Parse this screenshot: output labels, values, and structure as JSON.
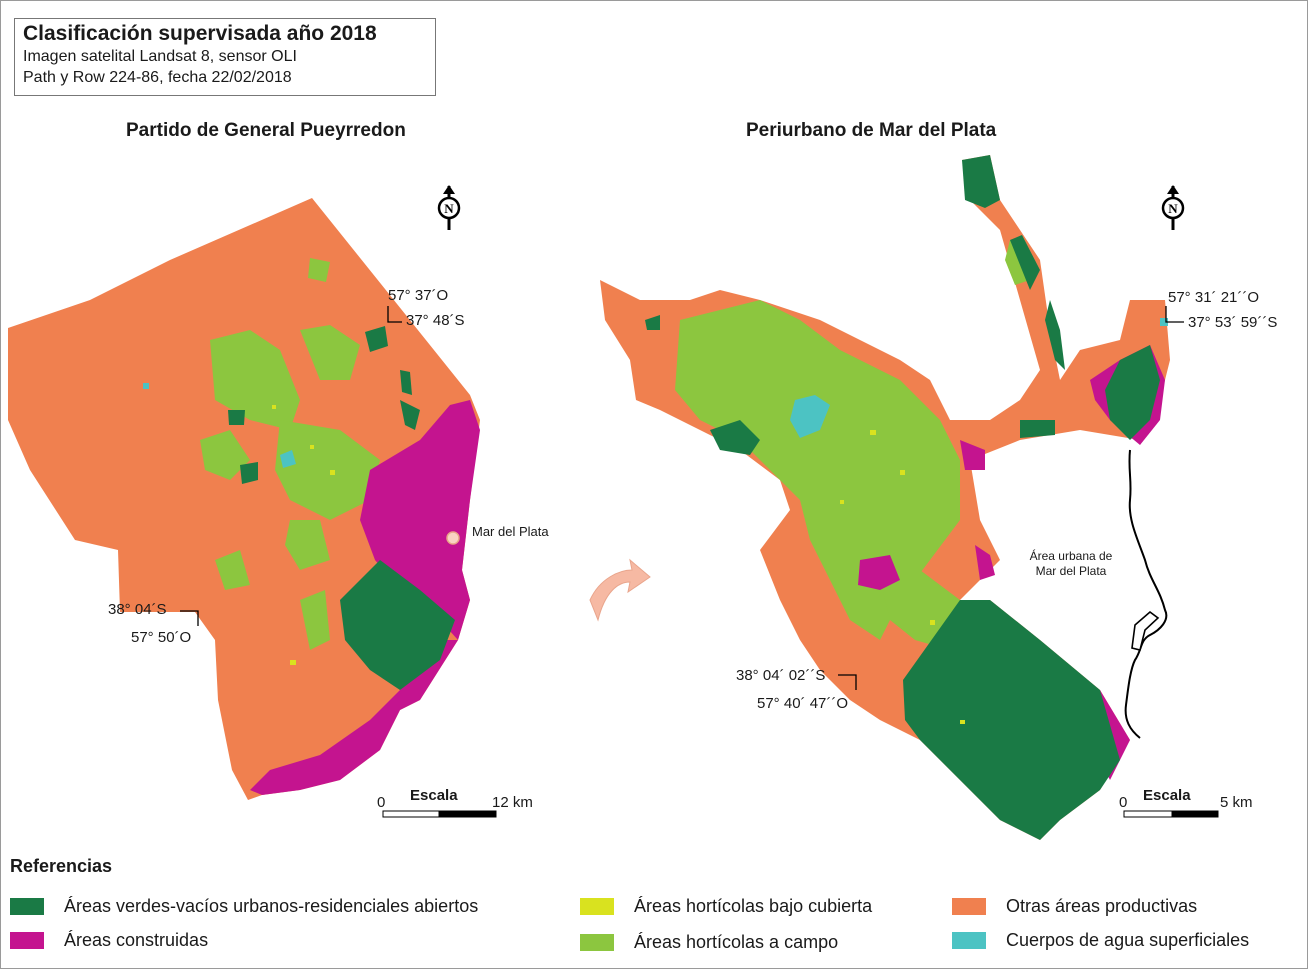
{
  "title": {
    "main": "Clasificación supervisada año 2018",
    "line2": "Imagen satelital Landsat 8, sensor OLI",
    "line3": "Path y Row 224-86, fecha 22/02/2018"
  },
  "left_map": {
    "title": "Partido de General Pueyrredon",
    "coord_ne_lon": "57° 37´O",
    "coord_ne_lat": "37° 48´S",
    "coord_sw_lat": "38° 04´S",
    "coord_sw_lon": "57° 50´O",
    "city_label": "Mar del Plata",
    "scale_title": "Escala",
    "scale_start": "0",
    "scale_end": "12 km",
    "north_letter": "N"
  },
  "right_map": {
    "title": "Periurbano de Mar del Plata",
    "coord_ne_lon": "57° 31´ 21´´O",
    "coord_ne_lat": "37° 53´ 59´´S",
    "coord_sw_lat": "38° 04´ 02´´S",
    "coord_sw_lon": "57° 40´ 47´´O",
    "urban_label_1": "Área urbana de",
    "urban_label_2": "Mar del Plata",
    "scale_title": "Escala",
    "scale_start": "0",
    "scale_end": "5 km",
    "north_letter": "N"
  },
  "colors": {
    "otras": "#f0804f",
    "verdes": "#1a7a45",
    "construidas": "#c4148f",
    "horti_cubierta": "#d9e21f",
    "horti_campo": "#8cc63f",
    "agua": "#4cc3c3",
    "arrow": "#f6b9a3"
  },
  "legend": {
    "title": "Referencias",
    "items": [
      {
        "label": "Áreas verdes-vacíos urbanos-residenciales abiertos",
        "color": "#1a7a45"
      },
      {
        "label": "Áreas construidas",
        "color": "#c4148f"
      },
      {
        "label": "Áreas hortícolas bajo cubierta",
        "color": "#d9e21f"
      },
      {
        "label": "Áreas hortícolas a campo",
        "color": "#8cc63f"
      },
      {
        "label": "Otras áreas productivas",
        "color": "#f0804f"
      },
      {
        "label": "Cuerpos de agua superficiales",
        "color": "#4cc3c3"
      }
    ]
  }
}
